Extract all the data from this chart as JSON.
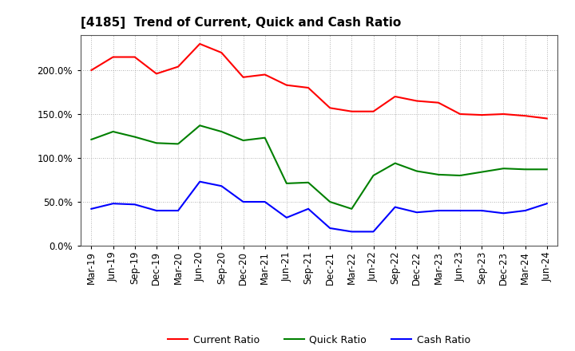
{
  "title": "[4185]  Trend of Current, Quick and Cash Ratio",
  "labels": [
    "Mar-19",
    "Jun-19",
    "Sep-19",
    "Dec-19",
    "Mar-20",
    "Jun-20",
    "Sep-20",
    "Dec-20",
    "Mar-21",
    "Jun-21",
    "Sep-21",
    "Dec-21",
    "Mar-22",
    "Jun-22",
    "Sep-22",
    "Dec-22",
    "Mar-23",
    "Jun-23",
    "Sep-23",
    "Dec-23",
    "Mar-24",
    "Jun-24"
  ],
  "current_ratio": [
    200,
    215,
    215,
    196,
    204,
    230,
    220,
    192,
    195,
    183,
    180,
    157,
    153,
    153,
    170,
    165,
    163,
    150,
    149,
    150,
    148,
    145
  ],
  "quick_ratio": [
    121,
    130,
    124,
    117,
    116,
    137,
    130,
    120,
    123,
    71,
    72,
    50,
    42,
    80,
    94,
    85,
    81,
    80,
    84,
    88,
    87,
    87
  ],
  "cash_ratio": [
    42,
    48,
    47,
    40,
    40,
    73,
    68,
    50,
    50,
    32,
    42,
    20,
    16,
    16,
    44,
    38,
    40,
    40,
    40,
    37,
    40,
    48
  ],
  "current_color": "#ff0000",
  "quick_color": "#008000",
  "cash_color": "#0000ff",
  "ylim": [
    0,
    240
  ],
  "yticks": [
    0,
    50,
    100,
    150,
    200
  ],
  "background_color": "#ffffff",
  "plot_bg_color": "#ffffff",
  "grid_color": "#999999",
  "line_width": 1.5,
  "title_fontsize": 11,
  "tick_fontsize": 8.5,
  "legend_fontsize": 9
}
